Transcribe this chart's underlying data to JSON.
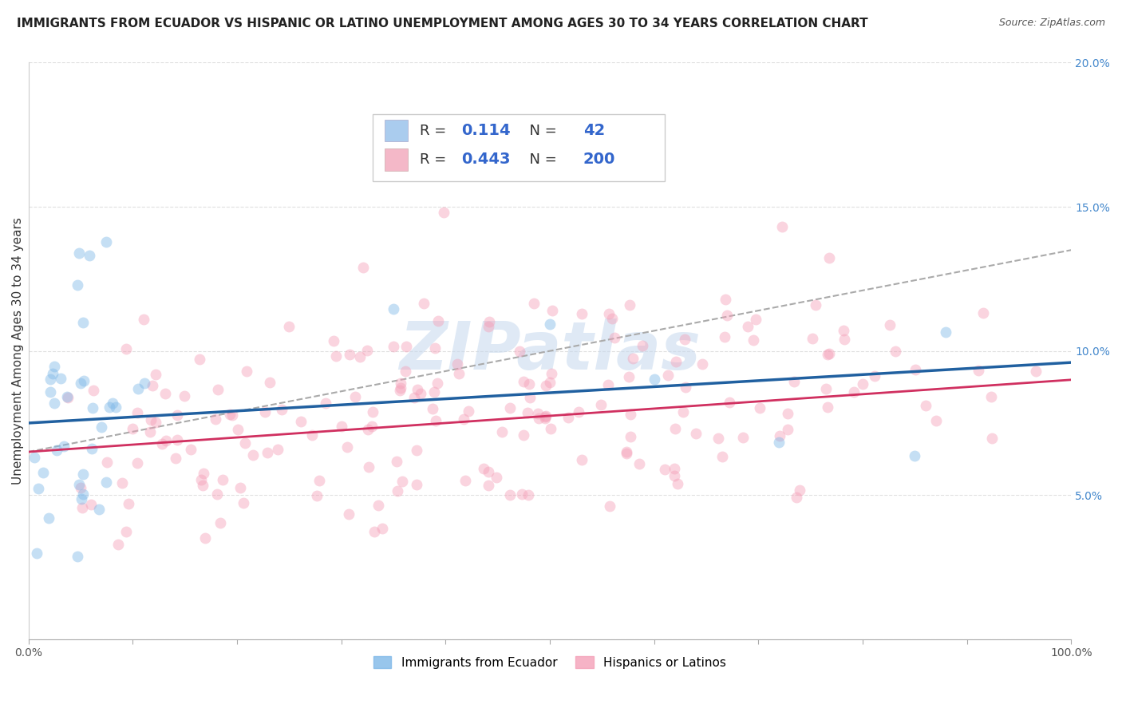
{
  "title": "IMMIGRANTS FROM ECUADOR VS HISPANIC OR LATINO UNEMPLOYMENT AMONG AGES 30 TO 34 YEARS CORRELATION CHART",
  "source": "Source: ZipAtlas.com",
  "ylabel": "Unemployment Among Ages 30 to 34 years",
  "xlim": [
    0,
    1.0
  ],
  "ylim": [
    0,
    0.2
  ],
  "ytick_vals": [
    0.0,
    0.05,
    0.1,
    0.15,
    0.2
  ],
  "ytick_labels": [
    "",
    "5.0%",
    "10.0%",
    "15.0%",
    "20.0%"
  ],
  "watermark": "ZIPatlas",
  "background_color": "#ffffff",
  "grid_color": "#e0e0e0",
  "title_fontsize": 11,
  "source_fontsize": 9,
  "label_fontsize": 11,
  "tick_fontsize": 10,
  "scatter_size": 100,
  "scatter_alpha": 0.45,
  "blue_color": "#7fb8e8",
  "pink_color": "#f4a0b8",
  "blue_line_color": "#2060a0",
  "pink_line_color": "#d03060",
  "legend1_color": "#aaccee",
  "legend2_color": "#f4b8c8",
  "R1": 0.114,
  "N1": 42,
  "R2": 0.443,
  "N2": 200,
  "blue_line_y0": 0.075,
  "blue_line_y1": 0.096,
  "pink_line_y0": 0.065,
  "pink_line_y1": 0.09,
  "dashed_line_y0": 0.065,
  "dashed_line_y1": 0.135,
  "seed": 137
}
